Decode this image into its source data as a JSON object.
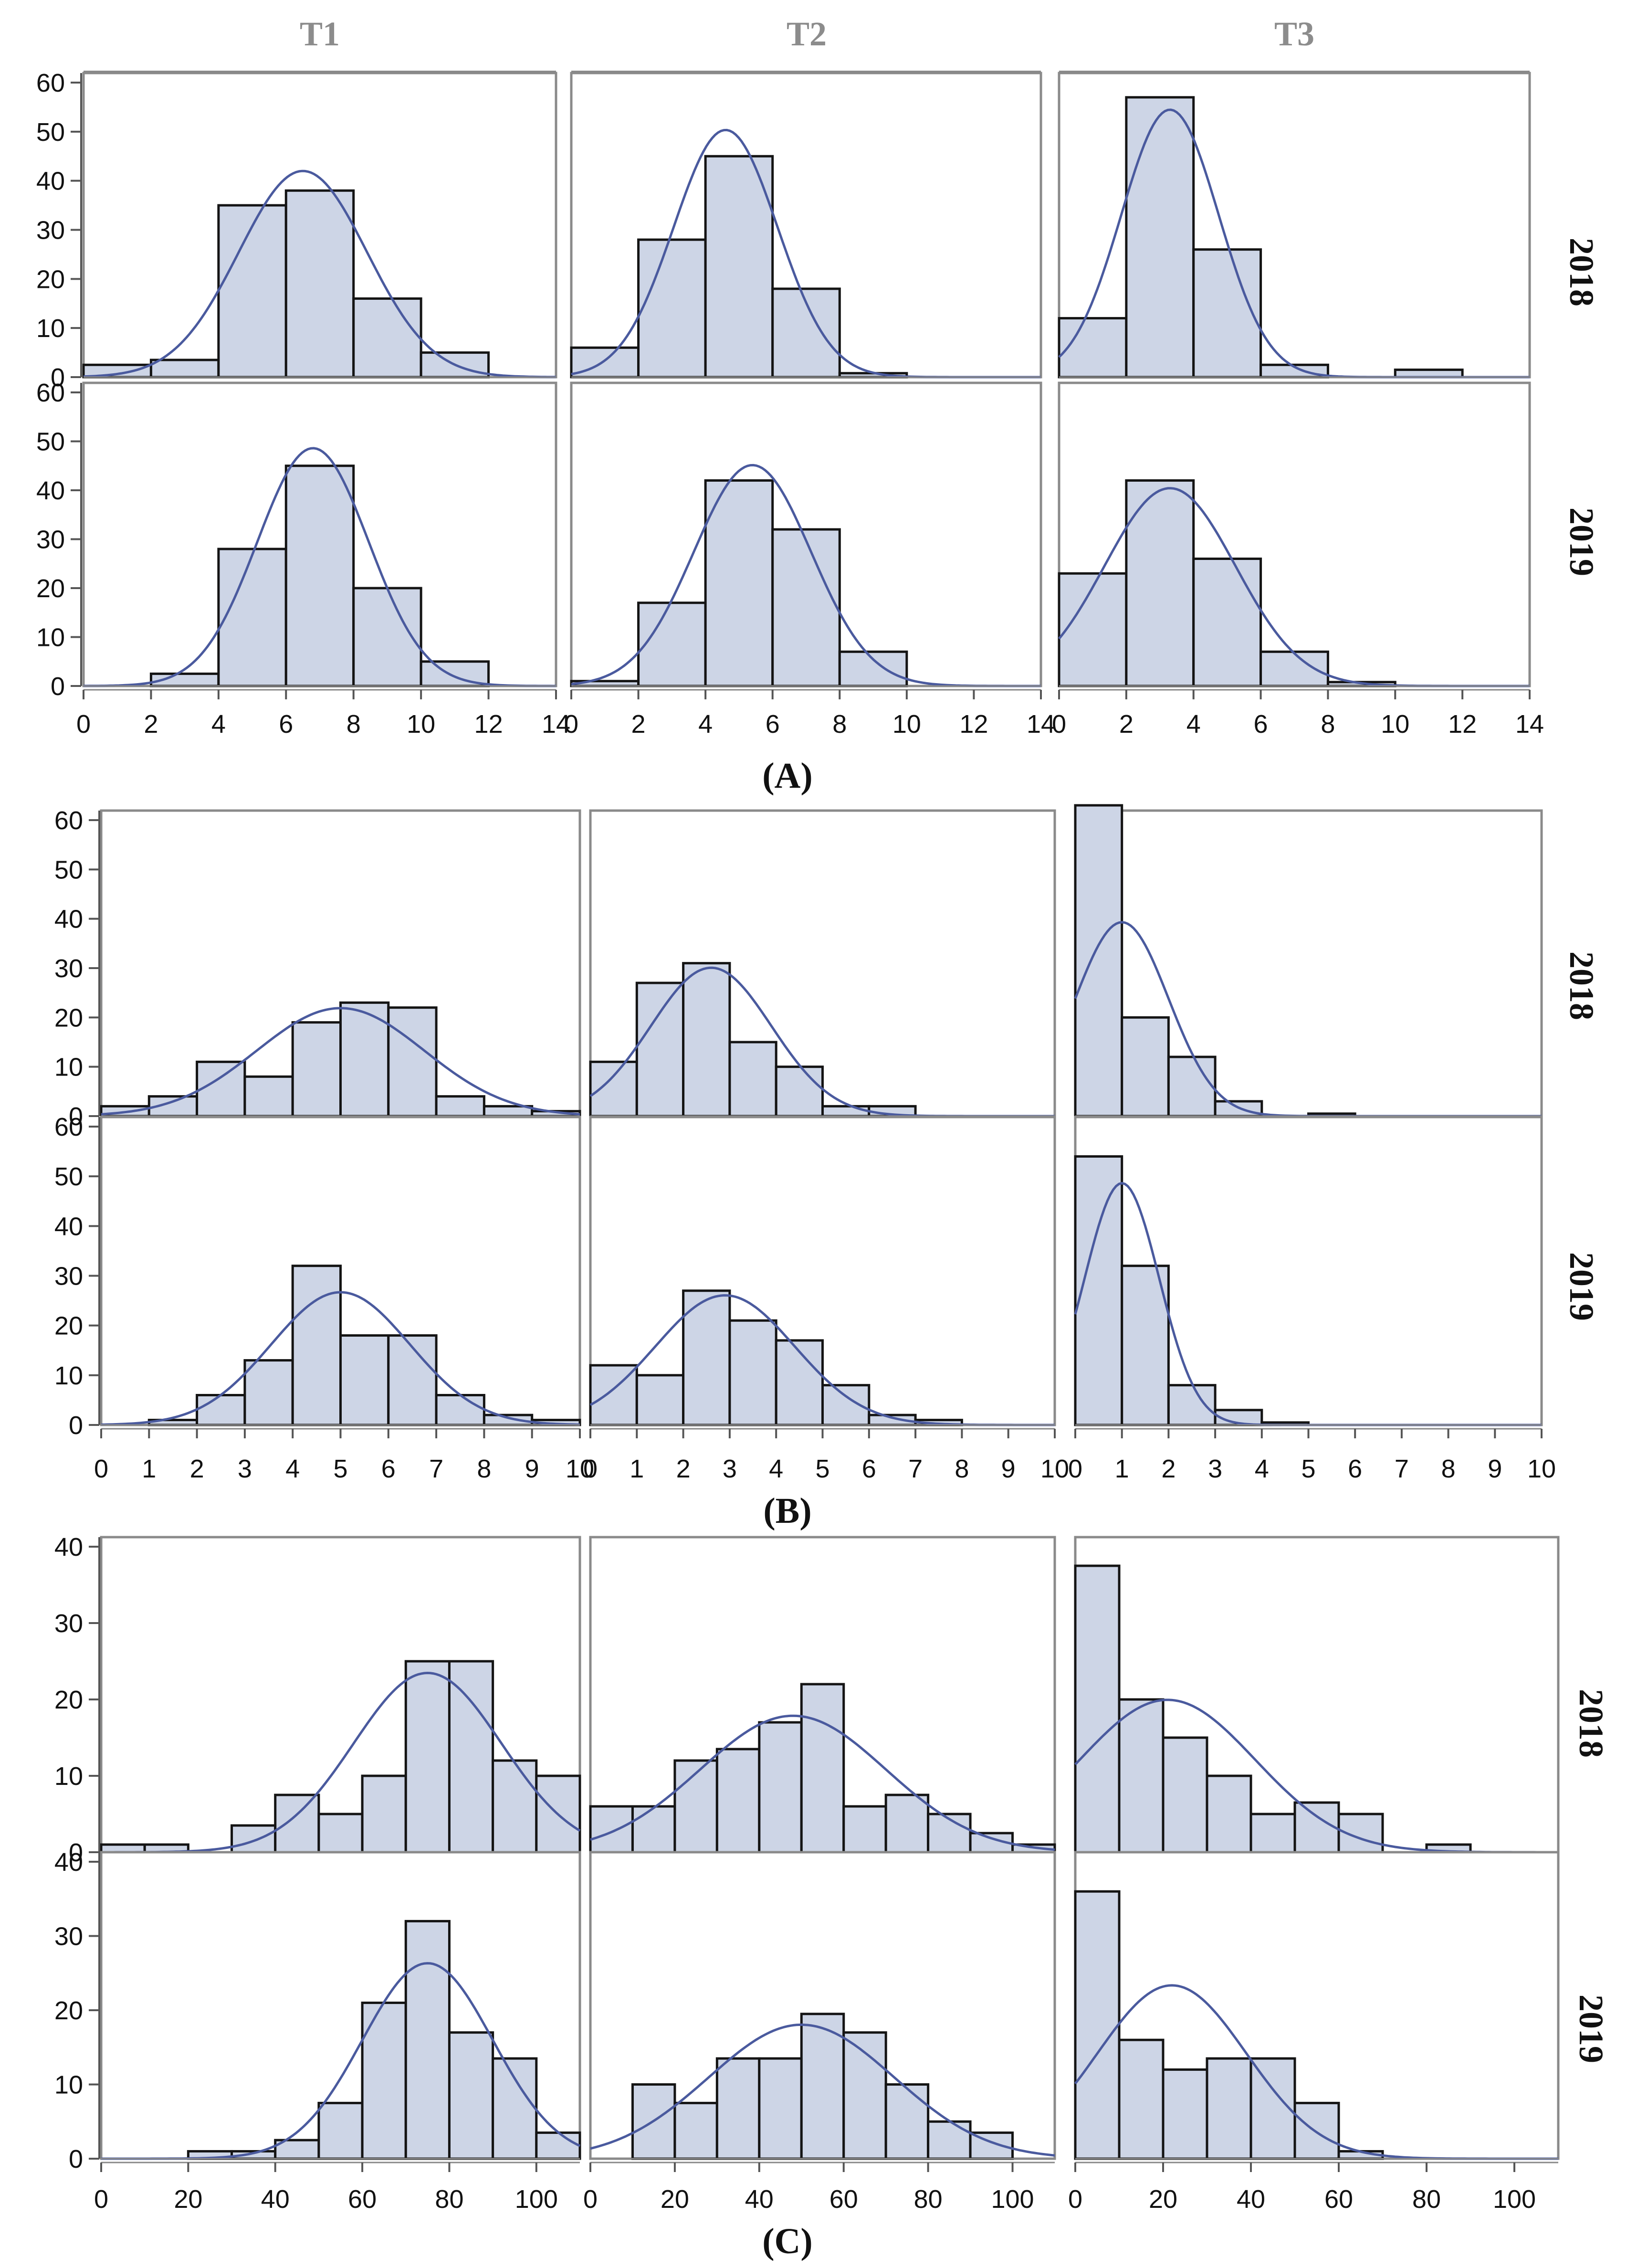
{
  "columns": [
    "T1",
    "T2",
    "T3"
  ],
  "rows": [
    "2018",
    "2019"
  ],
  "colors": {
    "bar_fill": "#cdd5e6",
    "bar_stroke": "#141414",
    "curve": "#4a5a9e",
    "frame": "#8a8a8a",
    "strip": "#8a8a8a"
  },
  "chart_data": [
    {
      "type": "bar",
      "panel": "(A)",
      "histogram": true,
      "xlim": [
        0,
        14
      ],
      "xticks": [
        0,
        2,
        4,
        6,
        8,
        10,
        12,
        14
      ],
      "ylim": [
        0,
        60
      ],
      "yticks": [
        0,
        10,
        20,
        30,
        40,
        50,
        60
      ],
      "bin_width": 2,
      "facets": [
        {
          "column": "T1",
          "row": "2018",
          "bins": [
            0,
            2,
            4,
            6,
            8,
            10,
            12
          ],
          "values": [
            2.5,
            3.5,
            35,
            38,
            16,
            5,
            0
          ],
          "normal": {
            "mean": 6.5,
            "sd": 1.9
          }
        },
        {
          "column": "T2",
          "row": "2018",
          "bins": [
            0,
            2,
            4,
            6,
            8,
            10,
            12
          ],
          "values": [
            6,
            28,
            45,
            18,
            0.8,
            0,
            0
          ],
          "normal": {
            "mean": 4.6,
            "sd": 1.55
          }
        },
        {
          "column": "T3",
          "row": "2018",
          "bins": [
            0,
            2,
            4,
            6,
            8,
            10,
            12
          ],
          "values": [
            12,
            57,
            26,
            2.5,
            0,
            1.5,
            0
          ],
          "normal": {
            "mean": 3.3,
            "sd": 1.45
          }
        },
        {
          "column": "T1",
          "row": "2019",
          "bins": [
            0,
            2,
            4,
            6,
            8,
            10,
            12
          ],
          "values": [
            0,
            2.5,
            28,
            45,
            20,
            5,
            0
          ],
          "normal": {
            "mean": 6.8,
            "sd": 1.65
          }
        },
        {
          "column": "T2",
          "row": "2019",
          "bins": [
            0,
            2,
            4,
            6,
            8,
            10,
            12
          ],
          "values": [
            1,
            17,
            42,
            32,
            7,
            0,
            0
          ],
          "normal": {
            "mean": 5.4,
            "sd": 1.75
          }
        },
        {
          "column": "T3",
          "row": "2019",
          "bins": [
            0,
            2,
            4,
            6,
            8,
            10,
            12
          ],
          "values": [
            23,
            42,
            26,
            7,
            0.8,
            0,
            0
          ],
          "normal": {
            "mean": 3.3,
            "sd": 1.95
          }
        }
      ]
    },
    {
      "type": "bar",
      "panel": "(B)",
      "histogram": true,
      "xlim": [
        0,
        10
      ],
      "xticks": [
        0,
        1,
        2,
        3,
        4,
        5,
        6,
        7,
        8,
        9,
        10
      ],
      "ylim": [
        0,
        60
      ],
      "yticks": [
        0,
        10,
        20,
        30,
        40,
        50,
        60
      ],
      "bin_width": 1,
      "facets": [
        {
          "column": "T1",
          "row": "2018",
          "bins": [
            0,
            1,
            2,
            3,
            4,
            5,
            6,
            7,
            8,
            9
          ],
          "values": [
            2,
            4,
            11,
            8,
            19,
            23,
            22,
            4,
            2,
            1
          ],
          "normal": {
            "mean": 5.0,
            "sd": 1.75
          }
        },
        {
          "column": "T2",
          "row": "2018",
          "bins": [
            0,
            1,
            2,
            3,
            4,
            5,
            6,
            7,
            8,
            9
          ],
          "values": [
            11,
            27,
            31,
            15,
            10,
            2,
            2,
            0,
            0,
            0
          ],
          "normal": {
            "mean": 2.6,
            "sd": 1.3
          }
        },
        {
          "column": "T3",
          "row": "2018",
          "bins": [
            0,
            1,
            2,
            3,
            4,
            5,
            6,
            7,
            8,
            9
          ],
          "values": [
            63,
            20,
            12,
            3,
            0,
            0.5,
            0,
            0,
            0,
            0
          ],
          "normal": {
            "mean": 1.0,
            "sd": 1.0
          }
        },
        {
          "column": "T1",
          "row": "2019",
          "bins": [
            0,
            1,
            2,
            3,
            4,
            5,
            6,
            7,
            8,
            9
          ],
          "values": [
            0,
            1,
            6,
            13,
            32,
            18,
            18,
            6,
            2,
            1
          ],
          "normal": {
            "mean": 5.0,
            "sd": 1.45
          }
        },
        {
          "column": "T2",
          "row": "2019",
          "bins": [
            0,
            1,
            2,
            3,
            4,
            5,
            6,
            7,
            8,
            9
          ],
          "values": [
            12,
            10,
            27,
            21,
            17,
            8,
            2,
            1,
            0,
            0
          ],
          "normal": {
            "mean": 2.9,
            "sd": 1.5
          }
        },
        {
          "column": "T3",
          "row": "2019",
          "bins": [
            0,
            1,
            2,
            3,
            4,
            5,
            6,
            7,
            8,
            9
          ],
          "values": [
            54,
            32,
            8,
            3,
            0.5,
            0,
            0,
            0,
            0,
            0
          ],
          "normal": {
            "mean": 1.0,
            "sd": 0.8
          }
        }
      ]
    },
    {
      "type": "bar",
      "panel": "(C)",
      "histogram": true,
      "xlim": [
        0,
        110
      ],
      "xticks": [
        0,
        20,
        40,
        60,
        80,
        100
      ],
      "ylim": [
        0,
        40
      ],
      "yticks": [
        0,
        10,
        20,
        30,
        40
      ],
      "bin_width": 10,
      "facets": [
        {
          "column": "T1",
          "row": "2018",
          "bins": [
            0,
            10,
            20,
            30,
            40,
            50,
            60,
            70,
            80,
            90,
            100
          ],
          "values": [
            1,
            1,
            0,
            3.5,
            7.5,
            5,
            10,
            25,
            25,
            12,
            10
          ],
          "normal": {
            "mean": 75,
            "sd": 17
          }
        },
        {
          "column": "T2",
          "row": "2018",
          "bins": [
            0,
            10,
            20,
            30,
            40,
            50,
            60,
            70,
            80,
            90,
            100
          ],
          "values": [
            6,
            6,
            12,
            13.5,
            17,
            22,
            6,
            7.5,
            5,
            2.5,
            1
          ],
          "normal": {
            "mean": 48,
            "sd": 22
          }
        },
        {
          "column": "T3",
          "row": "2018",
          "bins": [
            0,
            10,
            20,
            30,
            40,
            50,
            60,
            70,
            80,
            90,
            100
          ],
          "values": [
            37.5,
            20,
            15,
            10,
            5,
            6.5,
            5,
            0,
            1,
            0,
            0
          ],
          "normal": {
            "mean": 21,
            "sd": 20
          }
        },
        {
          "column": "T1",
          "row": "2019",
          "bins": [
            0,
            10,
            20,
            30,
            40,
            50,
            60,
            70,
            80,
            90,
            100
          ],
          "values": [
            0,
            0,
            1,
            1,
            2.5,
            7.5,
            21,
            32,
            17,
            13.5,
            3.5
          ],
          "normal": {
            "mean": 75,
            "sd": 15
          }
        },
        {
          "column": "T2",
          "row": "2019",
          "bins": [
            0,
            10,
            20,
            30,
            40,
            50,
            60,
            70,
            80,
            90,
            100
          ],
          "values": [
            0,
            10,
            7.5,
            13.5,
            13.5,
            19.5,
            17,
            10,
            5,
            3.5,
            0
          ],
          "normal": {
            "mean": 50,
            "sd": 22
          }
        },
        {
          "column": "T3",
          "row": "2019",
          "bins": [
            0,
            10,
            20,
            30,
            40,
            50,
            60,
            70,
            80,
            90,
            100
          ],
          "values": [
            36,
            16,
            12,
            13.5,
            13.5,
            7.5,
            1,
            0,
            0,
            0,
            0
          ],
          "normal": {
            "mean": 22,
            "sd": 17
          }
        }
      ]
    }
  ]
}
